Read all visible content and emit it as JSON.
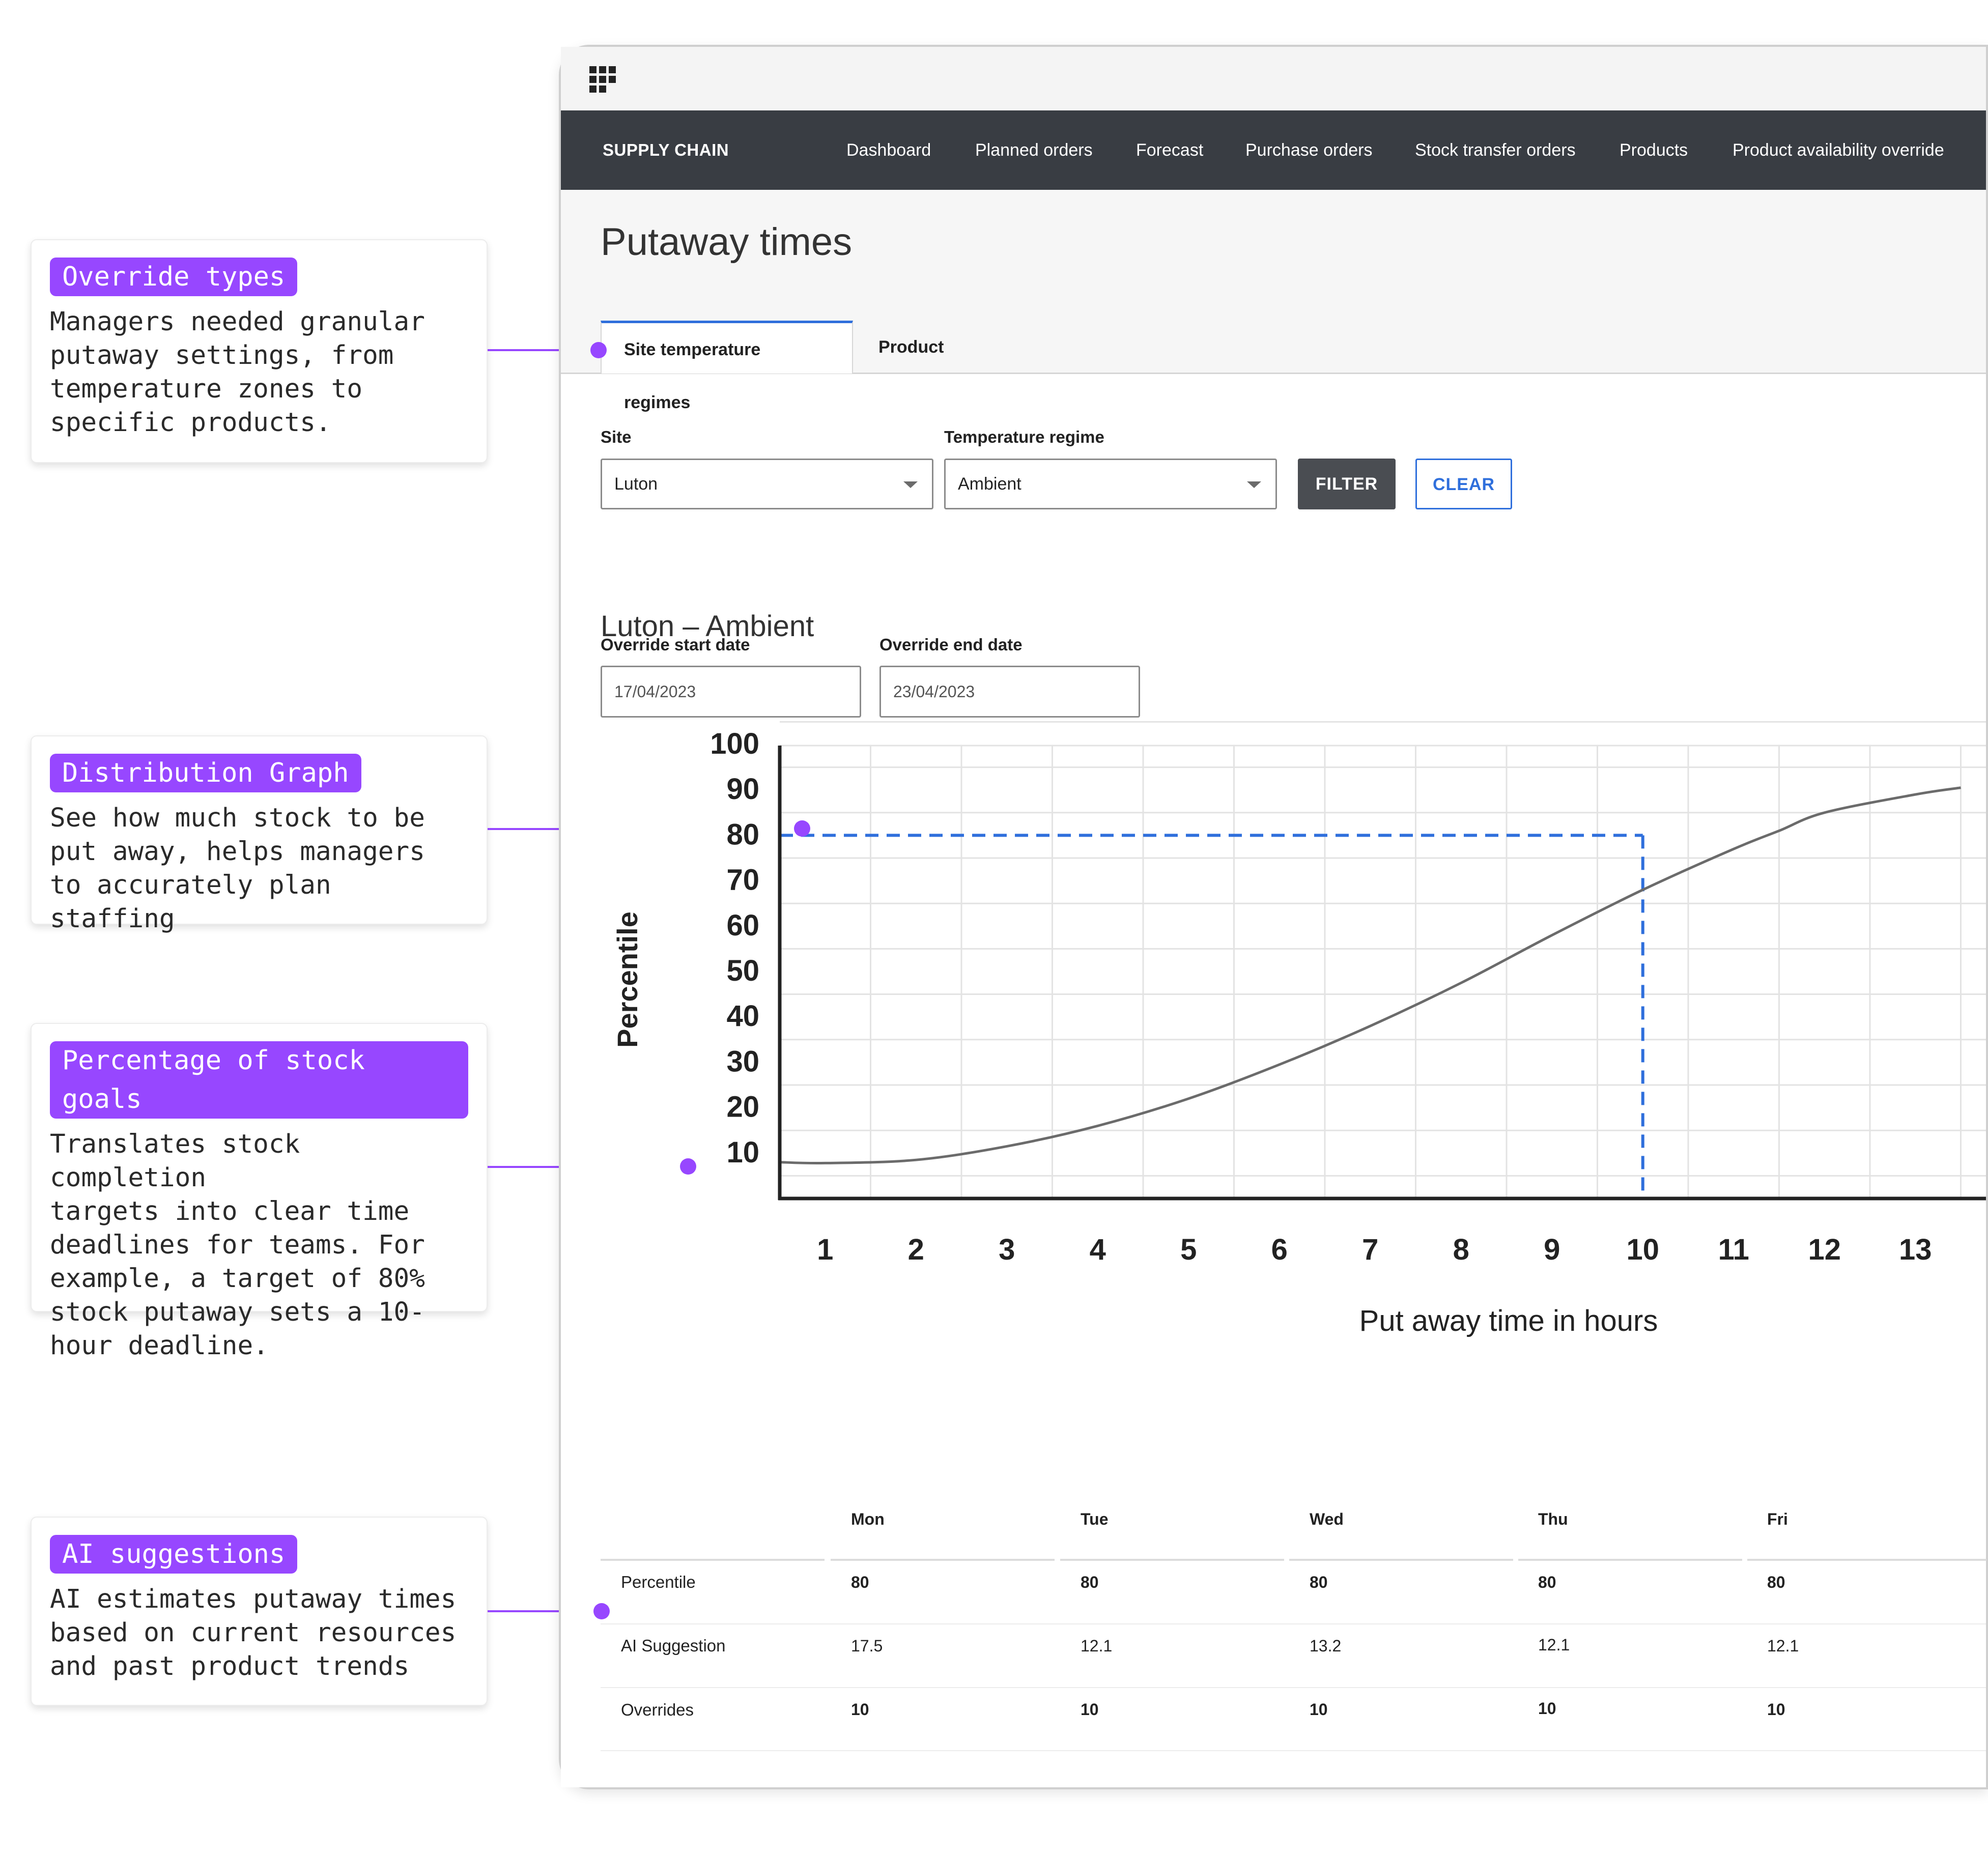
{
  "annotations": [
    {
      "tag": "Override types",
      "body": "Managers needed granular\nputaway settings, from\ntemperature zones to\nspecific products."
    },
    {
      "tag": "Distribution Graph",
      "body": "See how much stock to be\nput away, helps managers\nto accurately plan staffing"
    },
    {
      "tag": "Percentage of stock goals",
      "body": "Translates stock completion\ntargets into clear time\ndeadlines for teams. For\nexample, a target of 80%\nstock putaway sets a 10-\nhour deadline."
    },
    {
      "tag": "AI suggestions",
      "body": "AI estimates putaway times\nbased on current resources\nand past product trends"
    }
  ],
  "nav": {
    "brand": "SUPPLY CHAIN",
    "items": [
      "Dashboard",
      "Planned orders",
      "Forecast",
      "Purchase orders",
      "Stock transfer orders",
      "Products",
      "Product availability override"
    ]
  },
  "page_title": "Putaway times",
  "tabs": [
    "Site temperature regimes",
    "Product"
  ],
  "filters": {
    "site_label": "Site",
    "site_value": "Luton",
    "regime_label": "Temperature regime",
    "regime_value": "Ambient",
    "filter_button": "FILTER",
    "clear_button": "CLEAR"
  },
  "section_title": "Luton – Ambient",
  "override": {
    "start_label": "Override start date",
    "start_value": "17/04/2023",
    "end_label": "Override end date",
    "end_value": "23/04/2023"
  },
  "chart_data": {
    "type": "line",
    "xlabel": "Put away time in hours",
    "ylabel": "Percentile",
    "x_ticks": [
      1,
      2,
      3,
      4,
      5,
      6,
      7,
      8,
      9,
      10,
      11,
      12,
      13
    ],
    "y_ticks": [
      10,
      20,
      30,
      40,
      50,
      60,
      70,
      80,
      90,
      100
    ],
    "series": [
      {
        "x": [
          0.5,
          1,
          2,
          3,
          4,
          5,
          6,
          7,
          8,
          9,
          10,
          11,
          11.5,
          12,
          13,
          13.5
        ],
        "y": [
          8,
          7.8,
          8.5,
          11.5,
          16,
          22,
          29.5,
          38,
          47.5,
          58,
          68,
          77,
          81,
          85,
          89,
          90.5
        ]
      }
    ],
    "marker": {
      "x": 10,
      "y": 80,
      "color": "#2f6fdc"
    },
    "line_color": "#6b6b6b"
  },
  "table": {
    "days": [
      "Mon",
      "Tue",
      "Wed",
      "Thu",
      "Fri"
    ],
    "rows": [
      {
        "label": "Percentile",
        "values": [
          "80",
          "80",
          "80",
          "80",
          "80"
        ],
        "bold": true
      },
      {
        "label": "AI Suggestion",
        "values": [
          "17.5",
          "12.1",
          "13.2",
          "12.1",
          "12.1"
        ],
        "bold": false
      },
      {
        "label": "Overrides",
        "values": [
          "10",
          "10",
          "10",
          "10",
          "10"
        ],
        "bold": true
      }
    ]
  },
  "colors": {
    "accent": "#9747ff",
    "nav_bg": "#393d43",
    "primary_blue": "#2f6fdc"
  }
}
